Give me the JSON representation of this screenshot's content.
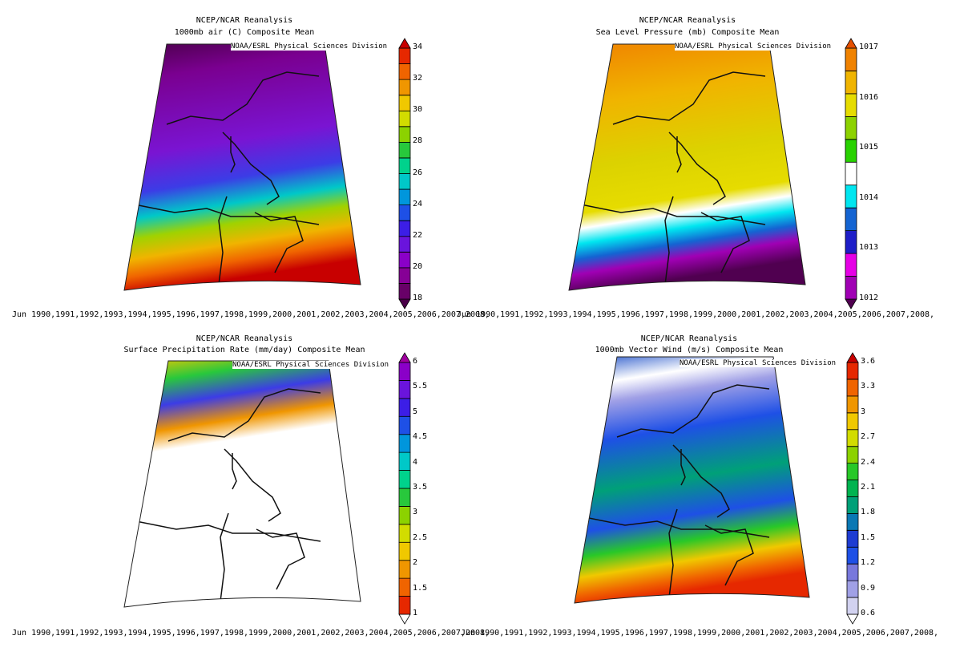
{
  "panels": [
    {
      "header": "NCEP/NCAR Reanalysis",
      "title": "1000mb air (C) Composite Mean",
      "credit": "NOAA/ESRL Physical Sciences Division",
      "dates": "Jun 1990,1991,1992,1993,1994,1995,1996,1997,1998,1999,2000,2001,2002,2003,2004,2005,2006,2007,2008,",
      "colorbar": {
        "ticks": [
          "18",
          "20",
          "22",
          "24",
          "26",
          "28",
          "30",
          "32",
          "34"
        ],
        "colors": [
          "#4a0048",
          "#680068",
          "#860096",
          "#8a00c8",
          "#6a14dc",
          "#3c1ee6",
          "#1e50e6",
          "#0096dc",
          "#00c8c8",
          "#00d28c",
          "#28c83c",
          "#8cd200",
          "#d2dc00",
          "#f0c800",
          "#f09600",
          "#f06400",
          "#e62800",
          "#c80000"
        ]
      },
      "map": {
        "stops": [
          [
            "0",
            "#4a0048"
          ],
          [
            "0.15",
            "#7a0090"
          ],
          [
            "0.45",
            "#7a14d2"
          ],
          [
            "0.6",
            "#3c3ce6"
          ],
          [
            "0.7",
            "#00c8c8"
          ],
          [
            "0.78",
            "#a0d200"
          ],
          [
            "0.86",
            "#f0b400"
          ],
          [
            "0.93",
            "#f06400"
          ],
          [
            "1",
            "#c80000"
          ]
        ]
      }
    },
    {
      "header": "NCEP/NCAR Reanalysis",
      "title": "Sea Level Pressure (mb) Composite Mean",
      "credit": "NOAA/ESRL Physical Sciences Division",
      "dates": "Jun 1990,1991,1992,1993,1994,1995,1996,1997,1998,1999,2000,2001,2002,2003,2004,2005,2006,2007,2008,",
      "colorbar": {
        "ticks": [
          "1012",
          "1013",
          "1014",
          "1015",
          "1016",
          "1017"
        ],
        "colors": [
          "#500050",
          "#a000b4",
          "#e600e6",
          "#1e1ec8",
          "#1464d2",
          "#00e6f0",
          "#ffffff",
          "#28d200",
          "#8cd200",
          "#e6dc00",
          "#f0b400",
          "#f08200",
          "#e65000"
        ]
      },
      "map": {
        "stops": [
          [
            "0",
            "#f08200"
          ],
          [
            "0.25",
            "#f0b400"
          ],
          [
            "0.5",
            "#dcd200"
          ],
          [
            "0.68",
            "#e6dc00"
          ],
          [
            "0.74",
            "#ffffff"
          ],
          [
            "0.8",
            "#00e6f0"
          ],
          [
            "0.86",
            "#1464d2"
          ],
          [
            "0.92",
            "#a000b4"
          ],
          [
            "1",
            "#500050"
          ]
        ]
      }
    },
    {
      "header": "NCEP/NCAR Reanalysis",
      "title": "Surface Precipitation Rate (mm/day) Composite Mean",
      "credit": "NOAA/ESRL Physical Sciences Division",
      "dates": "Jun 1990,1991,1992,1993,1994,1995,1996,1997,1998,1999,2000,2001,2002,2003,2004,2005,2006,2007,2008,",
      "colorbar": {
        "ticks": [
          "1",
          "1.5",
          "2",
          "2.5",
          "3",
          "3.5",
          "4",
          "4.5",
          "5",
          "5.5",
          "6"
        ],
        "colors": [
          "#ffffff",
          "#e62800",
          "#f06400",
          "#f09600",
          "#f0c800",
          "#d2dc00",
          "#8cd200",
          "#28c83c",
          "#00d28c",
          "#00c8c8",
          "#0096dc",
          "#1e50e6",
          "#3c1ee6",
          "#6a14dc",
          "#8a00c8",
          "#a000a0"
        ]
      },
      "map": {
        "stops": [
          [
            "0",
            "#f0c800"
          ],
          [
            "0.1",
            "#28c83c"
          ],
          [
            "0.2",
            "#3c3ce6"
          ],
          [
            "0.3",
            "#f09600"
          ],
          [
            "0.38",
            "#ffffff"
          ],
          [
            "1",
            "#ffffff"
          ]
        ]
      }
    },
    {
      "header": "NCEP/NCAR Reanalysis",
      "title": "1000mb Vector Wind (m/s) Composite Mean",
      "credit": "NOAA/ESRL Physical Sciences Division",
      "dates": "Jun 1990,1991,1992,1993,1994,1995,1996,1997,1998,1999,2000,2001,2002,2003,2004,2005,2006,2007,2008,",
      "colorbar": {
        "ticks": [
          "0.6",
          "0.9",
          "1.2",
          "1.5",
          "1.8",
          "2.1",
          "2.4",
          "2.7",
          "3",
          "3.3",
          "3.6"
        ],
        "colors": [
          "#ffffff",
          "#d2d2f0",
          "#a0a0e6",
          "#7878dc",
          "#1e50e6",
          "#1e3cd2",
          "#0a78b4",
          "#00a078",
          "#00b450",
          "#28c828",
          "#8cd200",
          "#d2dc00",
          "#f0c800",
          "#f09600",
          "#f06400",
          "#e62800",
          "#c80000"
        ]
      },
      "map": {
        "stops": [
          [
            "0",
            "#1e50c8"
          ],
          [
            "0.12",
            "#ffffff"
          ],
          [
            "0.2",
            "#a0a0e6"
          ],
          [
            "0.35",
            "#1e50e6"
          ],
          [
            "0.55",
            "#00a078"
          ],
          [
            "0.7",
            "#1e50e6"
          ],
          [
            "0.8",
            "#28c828"
          ],
          [
            "0.88",
            "#f0c800"
          ],
          [
            "0.95",
            "#f06400"
          ],
          [
            "1",
            "#e62800"
          ]
        ]
      }
    }
  ]
}
